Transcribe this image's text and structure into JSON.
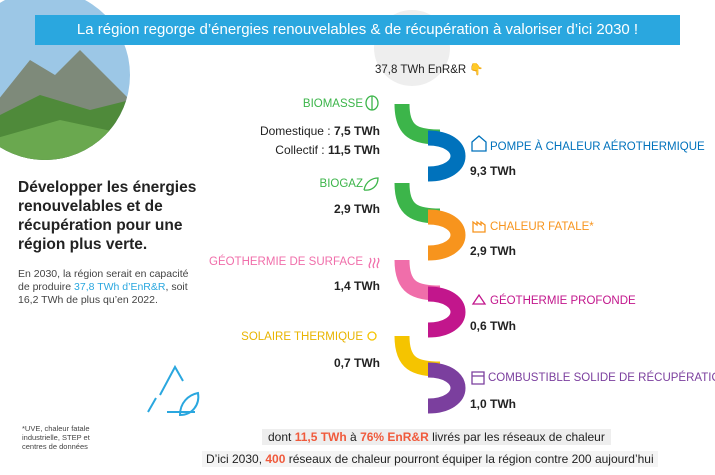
{
  "banner": "La région regorge d’énergies renouvelables & de récupération à valoriser d’ici 2030 !",
  "total": {
    "label": "37,8 TWh EnR&R",
    "icon": "👇"
  },
  "heading": "Développer les énergies renouvelables et de récupération pour une région plus verte.",
  "intro": [
    "En 2030, la région serait en capacité de produire ",
    "37,8 TWh d’EnR&R",
    ", soit 16,2 TWh de plus qu’en 2022."
  ],
  "items": [
    {
      "name": "BIOMASSE",
      "details": [
        {
          "label": "Domestique : ",
          "value": "7,5 TWh"
        },
        {
          "label": "Collectif : ",
          "value": "11,5 TWh"
        }
      ]
    },
    {
      "name": "POMPE À CHALEUR AÉROTHERMIQUE",
      "value": "9,3 TWh"
    },
    {
      "name": "BIOGAZ",
      "value": "2,9 TWh"
    },
    {
      "name": "CHALEUR FATALE*",
      "value": "2,9 TWh"
    },
    {
      "name": "GÉOTHERMIE DE SURFACE",
      "value": "1,4 TWh"
    },
    {
      "name": "GÉOTHERMIE PROFONDE",
      "value": "0,6 TWh"
    },
    {
      "name": "SOLAIRE THERMIQUE",
      "value": "0,7 TWh"
    },
    {
      "name": "COMBUSTIBLE SOLIDE DE RÉCUPÉRATION",
      "value": "1,0 TWh"
    }
  ],
  "footnote": "*UVE, chaleur fatale industrielle, STEP et centres de données",
  "footer": [
    [
      "dont ",
      "11,5 TWh",
      " à ",
      "76% EnR&R",
      " livrés par les réseaux de chaleur"
    ],
    [
      "D’ici 2030, ",
      "400",
      " réseaux de chaleur pourront équiper la région contre 200 aujourd’hui"
    ]
  ]
}
